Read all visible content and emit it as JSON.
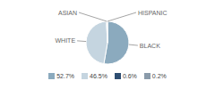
{
  "chart_data": {
    "type": "pie",
    "categories": [
      "BLACK",
      "WHITE",
      "ASIAN",
      "HISPANIC"
    ],
    "values": [
      52.7,
      46.5,
      0.6,
      0.2
    ],
    "value_labels": [
      "52.7%",
      "46.5%",
      "0.6%",
      "0.2%"
    ],
    "colors": [
      "#8baabe",
      "#c5d5e0",
      "#2e4e72",
      "#8a9baa"
    ],
    "legend": "bottom"
  }
}
